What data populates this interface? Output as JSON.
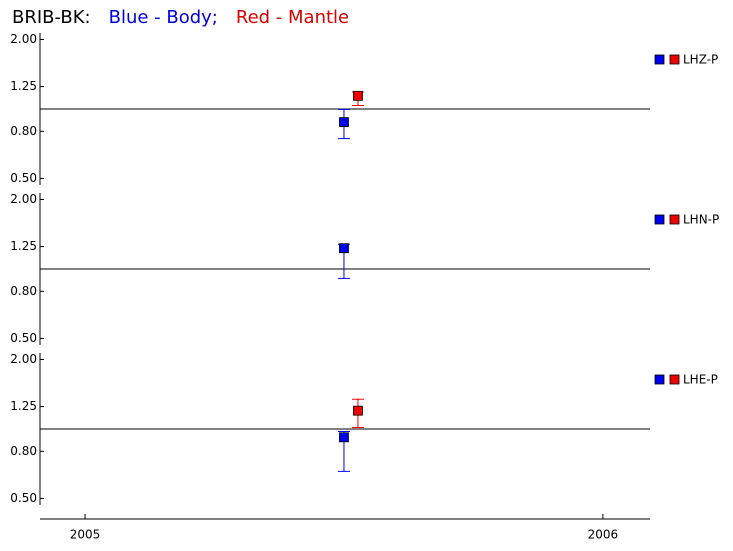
{
  "chart_data": [
    {
      "type": "scatter",
      "log_y": true,
      "title_parts": [
        {
          "text": "BRIB-BK:",
          "color": "#000000"
        },
        {
          "text": "Blue - Body;",
          "color": "#0000dd"
        },
        {
          "text": "Red - Mantle",
          "color": "#dd0000"
        }
      ],
      "label": "LHZ-P",
      "xlim": [
        2004.913,
        2006.091
      ],
      "ylim": [
        0.45,
        2.22
      ],
      "yticks": [
        {
          "value": 2,
          "label": "2.00"
        },
        {
          "value": 1.25,
          "label": "1.25"
        },
        {
          "value": 0.8,
          "label": "0.80"
        },
        {
          "value": 0.5,
          "label": "0.50"
        }
      ],
      "reference_line": 1,
      "series": [
        {
          "color": "#0000ee",
          "x": [
            2005.5
          ],
          "values": [
            0.877
          ],
          "lower": [
            0.744
          ],
          "upper": [
            0.995
          ]
        },
        {
          "color": "#ee0000",
          "x": [
            2005.527
          ],
          "values": [
            1.14
          ],
          "lower": [
            1.035
          ],
          "upper": [
            1.185
          ]
        }
      ]
    },
    {
      "type": "scatter",
      "log_y": true,
      "label": "LHN-P",
      "xlim": [
        2004.913,
        2006.091
      ],
      "ylim": [
        0.45,
        2.22
      ],
      "yticks": [
        {
          "value": 2,
          "label": "2.00"
        },
        {
          "value": 1.25,
          "label": "1.25"
        },
        {
          "value": 0.8,
          "label": "0.80"
        },
        {
          "value": 0.5,
          "label": "0.50"
        }
      ],
      "reference_line": 1,
      "series": [
        {
          "color": "#0000ee",
          "x": [
            2005.5
          ],
          "values": [
            1.23
          ],
          "lower": [
            0.91
          ],
          "upper": [
            1.28
          ]
        },
        {
          "color": "#ee0000",
          "x": [
            2005.527
          ],
          "values": [
            null
          ],
          "lower": [
            null
          ],
          "upper": [
            null
          ]
        }
      ]
    },
    {
      "type": "scatter",
      "log_y": true,
      "label": "LHE-P",
      "xlim": [
        2004.913,
        2006.091
      ],
      "ylim": [
        0.45,
        2.22
      ],
      "yticks": [
        {
          "value": 2,
          "label": "2.00"
        },
        {
          "value": 1.25,
          "label": "1.25"
        },
        {
          "value": 0.8,
          "label": "0.80"
        },
        {
          "value": 0.5,
          "label": "0.50"
        }
      ],
      "reference_line": 1,
      "xticks": [
        2005,
        2006
      ],
      "series": [
        {
          "color": "#0000ee",
          "x": [
            2005.5
          ],
          "values": [
            0.92
          ],
          "lower": [
            0.655
          ],
          "upper": [
            0.975
          ]
        },
        {
          "color": "#ee0000",
          "x": [
            2005.527
          ],
          "values": [
            1.2
          ],
          "lower": [
            1.015
          ],
          "upper": [
            1.345
          ]
        }
      ]
    }
  ]
}
